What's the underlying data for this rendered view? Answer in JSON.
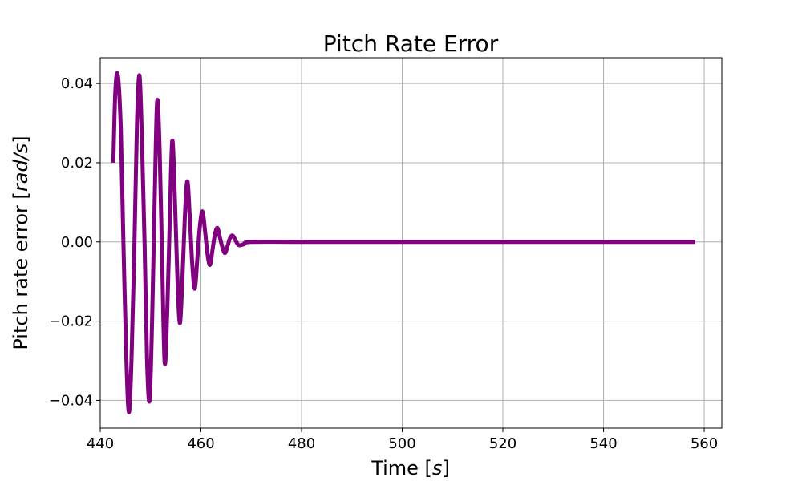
{
  "chart_data": {
    "type": "line",
    "title": "Pitch Rate Error",
    "xlabel_prefix": "Time [",
    "xlabel_unit": "s",
    "xlabel_suffix": "]",
    "ylabel_prefix": "Pitch rate error [",
    "ylabel_unit": "rad/s",
    "ylabel_suffix": "]",
    "xlim": [
      440,
      563.5
    ],
    "ylim": [
      -0.047,
      0.0465
    ],
    "xticks": [
      440,
      460,
      480,
      500,
      520,
      540,
      560
    ],
    "xtick_labels": [
      "440",
      "460",
      "480",
      "500",
      "520",
      "540",
      "560"
    ],
    "yticks": [
      -0.04,
      -0.02,
      0.0,
      0.02,
      0.04
    ],
    "ytick_labels": [
      "−0.04",
      "−0.02",
      "0.00",
      "0.02",
      "0.04"
    ],
    "grid": true,
    "line_color": "#800080",
    "series": [
      {
        "x": [
          442.6,
          443.0,
          443.5,
          444.1,
          444.6,
          445.2,
          445.7,
          446.2,
          446.8,
          447.3,
          447.8,
          448.3,
          448.8,
          449.3,
          449.8,
          450.3,
          450.8,
          451.3,
          451.8,
          452.3,
          452.8,
          453.3,
          453.8,
          454.3,
          454.8,
          455.3,
          455.8,
          456.3,
          456.8,
          457.3,
          457.8,
          458.3,
          458.8,
          459.3,
          459.8,
          460.3,
          460.8,
          461.3,
          461.8,
          462.3,
          462.8,
          463.3,
          463.8,
          464.3,
          464.8,
          465.3,
          465.8,
          466.3,
          466.8,
          467.5,
          468.5,
          470,
          480,
          500,
          520,
          540,
          558.2
        ],
        "y": [
          0.02,
          0.038,
          0.042,
          0.028,
          0.0,
          -0.03,
          -0.043,
          -0.03,
          0.0,
          0.03,
          0.042,
          0.025,
          0.0,
          -0.03,
          -0.04,
          -0.02,
          0.01,
          0.0355,
          0.023,
          -0.005,
          -0.0305,
          -0.018,
          0.005,
          0.0255,
          0.012,
          -0.008,
          -0.0205,
          -0.01,
          0.006,
          0.0153,
          0.006,
          -0.006,
          -0.0118,
          -0.004,
          0.004,
          0.0077,
          0.003,
          -0.003,
          -0.0058,
          -0.002,
          0.002,
          0.0035,
          0.001,
          -0.0015,
          -0.0028,
          -0.001,
          0.001,
          0.0016,
          0.0006,
          -0.0008,
          -0.0006,
          0.0,
          0.0,
          0.0,
          0.0,
          0.0,
          0.0
        ]
      }
    ]
  }
}
